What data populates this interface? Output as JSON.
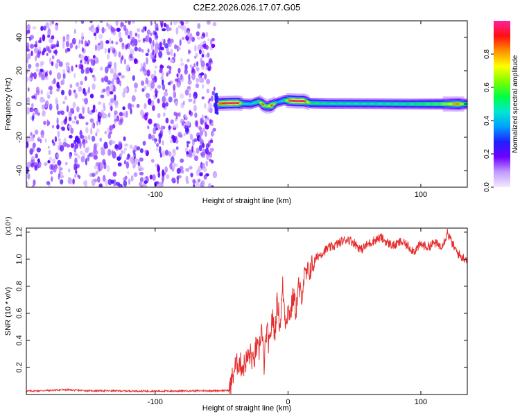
{
  "title": "C2E2.2026.026.17.07.G05",
  "chart_data": [
    {
      "type": "heatmap",
      "xlabel": "Height of straight line (km)",
      "ylabel": "Frequency (Hz)",
      "xlim": [
        -197,
        135
      ],
      "ylim": [
        -50,
        50
      ],
      "xticks": [
        -100,
        0,
        100
      ],
      "xtick_labels": [
        "-100",
        "",
        "100"
      ],
      "yticks": [
        -40,
        -20,
        0,
        20,
        40
      ],
      "noise_region_x": [
        -197,
        -55
      ],
      "signal_track": [
        {
          "x": -55,
          "f": 0.0,
          "amp": 0.25
        },
        {
          "x": -52,
          "f": 0.3,
          "amp": 0.85
        },
        {
          "x": -45,
          "f": 0.5,
          "amp": 0.95
        },
        {
          "x": -38,
          "f": 0.6,
          "amp": 0.95
        },
        {
          "x": -33,
          "f": 0.2,
          "amp": 0.45
        },
        {
          "x": -28,
          "f": 0.0,
          "amp": 0.45
        },
        {
          "x": -22,
          "f": 1.5,
          "amp": 0.55
        },
        {
          "x": -19,
          "f": -0.3,
          "amp": 0.9
        },
        {
          "x": -16,
          "f": -1.5,
          "amp": 0.6
        },
        {
          "x": -12,
          "f": -0.8,
          "amp": 0.9
        },
        {
          "x": -8,
          "f": 1.0,
          "amp": 0.4
        },
        {
          "x": -3,
          "f": 2.2,
          "amp": 0.5
        },
        {
          "x": 2,
          "f": 2.0,
          "amp": 0.95
        },
        {
          "x": 7,
          "f": 1.8,
          "amp": 0.95
        },
        {
          "x": 12,
          "f": 1.8,
          "amp": 0.95
        },
        {
          "x": 17,
          "f": 0.5,
          "amp": 0.55
        },
        {
          "x": 30,
          "f": 0.3,
          "amp": 0.5
        },
        {
          "x": 60,
          "f": 0.2,
          "amp": 0.5
        },
        {
          "x": 90,
          "f": 0.0,
          "amp": 0.52
        },
        {
          "x": 115,
          "f": 0.0,
          "amp": 0.6
        },
        {
          "x": 128,
          "f": 0.0,
          "amp": 0.85
        },
        {
          "x": 135,
          "f": 0.0,
          "amp": 0.5
        }
      ],
      "colorbar": {
        "label": "Normalized spectral amplitude",
        "range": [
          0,
          1
        ],
        "ticks": [
          0.0,
          0.2,
          0.4,
          0.6,
          0.8
        ],
        "tick_labels": [
          "0.0",
          "0.2",
          "0.4",
          "0.6",
          "0.8"
        ],
        "colors": [
          "#f4eaff",
          "#c19cff",
          "#7000ff",
          "#2020ff",
          "#00a0ff",
          "#00e8d0",
          "#00ff40",
          "#80ff00",
          "#ffff00",
          "#ff9000",
          "#ff1010",
          "#ff20a0"
        ]
      }
    },
    {
      "type": "line",
      "xlabel": "Height of straight line (km)",
      "ylabel": "SNR (10 * v/v)",
      "scale_label": "(x10⁴)",
      "xlim": [
        -197,
        135
      ],
      "ylim": [
        0,
        1.23
      ],
      "xticks": [
        -100,
        0,
        100
      ],
      "xtick_labels": [
        "-100",
        "0",
        "100"
      ],
      "yticks": [
        0.2,
        0.4,
        0.6,
        0.8,
        1.0,
        1.2
      ],
      "ytick_labels": [
        "0.2",
        "0.4",
        "0.6",
        "0.8",
        "1.0",
        "1.2"
      ],
      "series": [
        {
          "color": "#e62d2d",
          "x": [
            -197,
            -180,
            -170,
            -150,
            -100,
            -60,
            -44,
            -42,
            -40,
            -37,
            -34,
            -31,
            -28,
            -26,
            -24,
            -22,
            -20,
            -18,
            -16,
            -14,
            -12,
            -10,
            -8,
            -6,
            -4,
            -2,
            0,
            2,
            4,
            6,
            8,
            10,
            12,
            15,
            18,
            22,
            26,
            30,
            35,
            40,
            45,
            50,
            55,
            60,
            65,
            70,
            75,
            80,
            85,
            90,
            95,
            100,
            105,
            110,
            115,
            118,
            120,
            123,
            126,
            130,
            135
          ],
          "y": [
            0.025,
            0.03,
            0.035,
            0.028,
            0.025,
            0.028,
            0.03,
            0.12,
            0.2,
            0.24,
            0.2,
            0.26,
            0.3,
            0.22,
            0.36,
            0.3,
            0.5,
            0.22,
            0.48,
            0.34,
            0.58,
            0.45,
            0.7,
            0.5,
            0.8,
            0.55,
            0.62,
            0.6,
            0.74,
            0.62,
            0.8,
            0.72,
            0.86,
            0.9,
            0.95,
            1.02,
            1.05,
            1.08,
            1.1,
            1.13,
            1.15,
            1.12,
            1.07,
            1.11,
            1.14,
            1.16,
            1.12,
            1.1,
            1.13,
            1.1,
            1.06,
            1.11,
            1.09,
            1.12,
            1.1,
            1.14,
            1.2,
            1.13,
            1.07,
            1.02,
            1.0
          ]
        }
      ]
    }
  ]
}
